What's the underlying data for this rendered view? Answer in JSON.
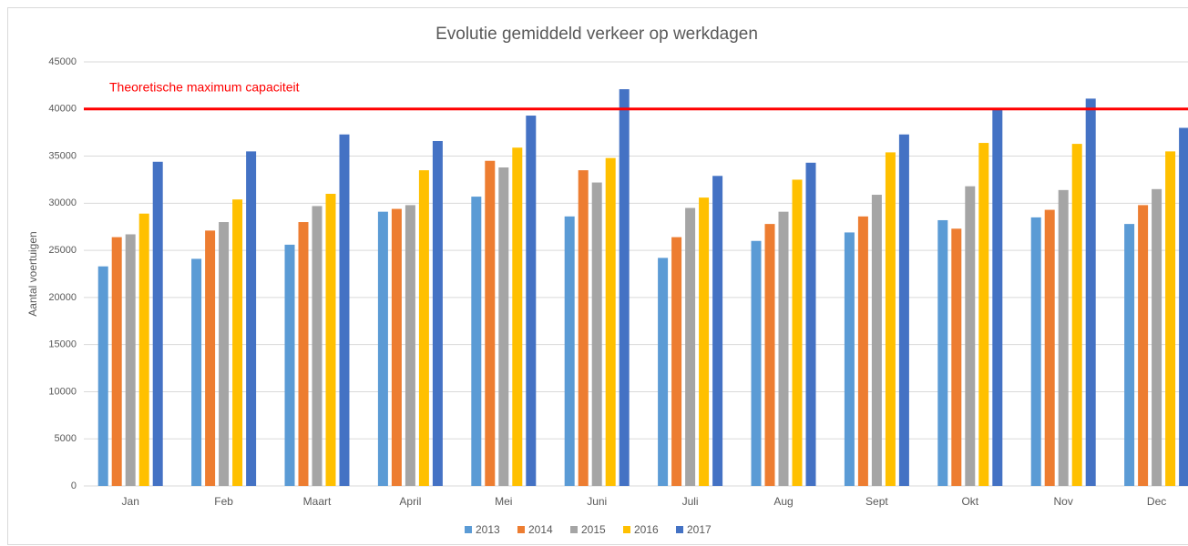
{
  "chart_data": {
    "type": "bar",
    "title": "Evolutie gemiddeld verkeer op werkdagen",
    "y_label": "Aantal voertuigen",
    "categories": [
      "Jan",
      "Feb",
      "Maart",
      "April",
      "Mei",
      "Juni",
      "Juli",
      "Aug",
      "Sept",
      "Okt",
      "Nov",
      "Dec"
    ],
    "series": [
      {
        "name": "2013",
        "color": "#5b9bd5",
        "values": [
          23300,
          24100,
          25600,
          29100,
          30700,
          28600,
          24200,
          26000,
          26900,
          28200,
          28500,
          27800
        ]
      },
      {
        "name": "2014",
        "color": "#ed7d31",
        "values": [
          26400,
          27100,
          28000,
          29400,
          34500,
          33500,
          26400,
          27800,
          28600,
          27300,
          29300,
          29800
        ]
      },
      {
        "name": "2015",
        "color": "#a5a5a5",
        "values": [
          26700,
          28000,
          29700,
          29800,
          33800,
          32200,
          29500,
          29100,
          30900,
          31800,
          31400,
          31500
        ]
      },
      {
        "name": "2016",
        "color": "#ffc000",
        "values": [
          28900,
          30400,
          31000,
          33500,
          35900,
          34800,
          30600,
          32500,
          35400,
          36400,
          36300,
          35500
        ]
      },
      {
        "name": "2017",
        "color": "#4472c4",
        "values": [
          34400,
          35500,
          37300,
          36600,
          39300,
          42100,
          32900,
          34300,
          37300,
          40000,
          41100,
          38000
        ]
      }
    ],
    "ylim": [
      0,
      45000
    ],
    "yticks": [
      0,
      5000,
      10000,
      15000,
      20000,
      25000,
      30000,
      35000,
      40000,
      45000
    ],
    "grid": true,
    "legend": "bottom",
    "reference_line": {
      "value": 40000,
      "label": "Theoretische maximum capaciteit",
      "color": "#ff0000"
    }
  }
}
